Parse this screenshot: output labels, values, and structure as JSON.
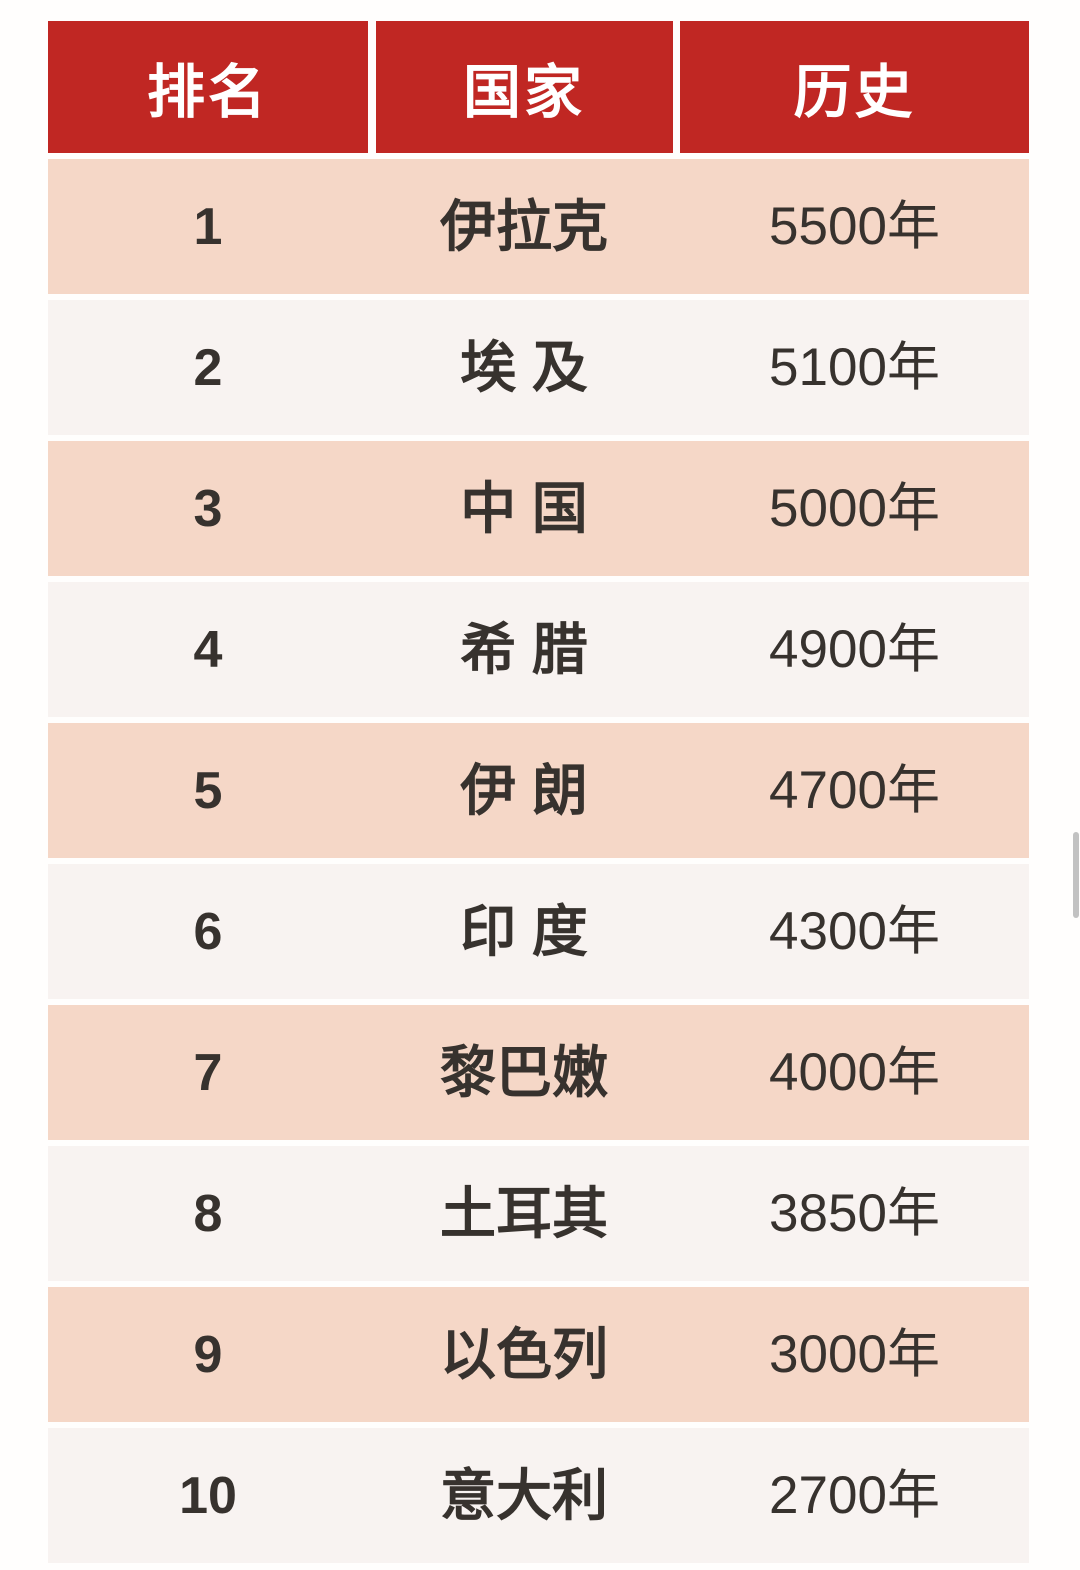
{
  "colors": {
    "header_bg": "#c02723",
    "header_text": "#ffffff",
    "row_peach_bg": "#f5d7c7",
    "row_light_bg": "#f8f3f1",
    "body_text": "#37322e",
    "page_bg": "#fffefd",
    "scrollbar_thumb": "#c2c2c2"
  },
  "table": {
    "columns": [
      {
        "key": "rank",
        "label": "排名"
      },
      {
        "key": "country",
        "label": "国家"
      },
      {
        "key": "history",
        "label": "历史"
      }
    ],
    "rows": [
      {
        "rank": "1",
        "country": "伊拉克",
        "history": "5500年"
      },
      {
        "rank": "2",
        "country": "埃 及",
        "history": "5100年"
      },
      {
        "rank": "3",
        "country": "中 国",
        "history": "5000年"
      },
      {
        "rank": "4",
        "country": "希 腊",
        "history": "4900年"
      },
      {
        "rank": "5",
        "country": "伊 朗",
        "history": "4700年"
      },
      {
        "rank": "6",
        "country": "印 度",
        "history": "4300年"
      },
      {
        "rank": "7",
        "country": "黎巴嫩",
        "history": "4000年"
      },
      {
        "rank": "8",
        "country": "土耳其",
        "history": "3850年"
      },
      {
        "rank": "9",
        "country": "以色列",
        "history": "3000年"
      },
      {
        "rank": "10",
        "country": "意大利",
        "history": "2700年"
      }
    ]
  },
  "chart_data": {
    "type": "table",
    "title": "",
    "columns": [
      "排名",
      "国家",
      "历史"
    ],
    "categories": [
      "伊拉克",
      "埃及",
      "中国",
      "希腊",
      "伊朗",
      "印度",
      "黎巴嫩",
      "土耳其",
      "以色列",
      "意大利"
    ],
    "ranks": [
      1,
      2,
      3,
      4,
      5,
      6,
      7,
      8,
      9,
      10
    ],
    "history_years": [
      5500,
      5100,
      5000,
      4900,
      4700,
      4300,
      4000,
      3850,
      3000,
      2700
    ],
    "value_suffix": "年",
    "layout": "ranked table, red header row, alternating peach/light row stripes"
  }
}
